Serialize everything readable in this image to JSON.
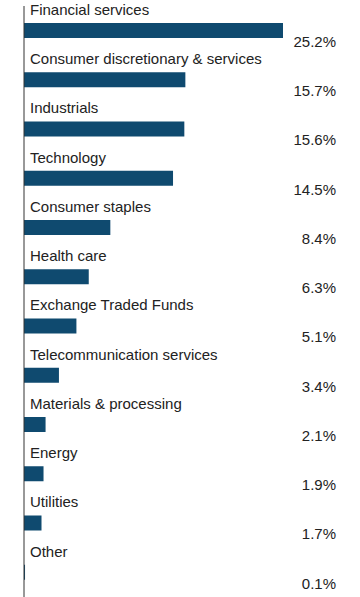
{
  "chart_data": {
    "type": "bar",
    "orientation": "horizontal",
    "categories": [
      "Financial services",
      "Consumer discretionary & services",
      "Industrials",
      "Technology",
      "Consumer staples",
      "Health care",
      "Exchange Traded Funds",
      "Telecommunication services",
      "Materials & processing",
      "Energy",
      "Utilities",
      "Other"
    ],
    "values": [
      25.2,
      15.7,
      15.6,
      14.5,
      8.4,
      6.3,
      5.1,
      3.4,
      2.1,
      1.9,
      1.7,
      0.1
    ],
    "value_labels": [
      "25.2%",
      "15.7%",
      "15.6%",
      "14.5%",
      "8.4%",
      "6.3%",
      "5.1%",
      "3.4%",
      "2.1%",
      "1.9%",
      "1.7%",
      "0.1%"
    ],
    "color": "#0f4a6f",
    "data_labels": true,
    "tick_labels": false
  }
}
